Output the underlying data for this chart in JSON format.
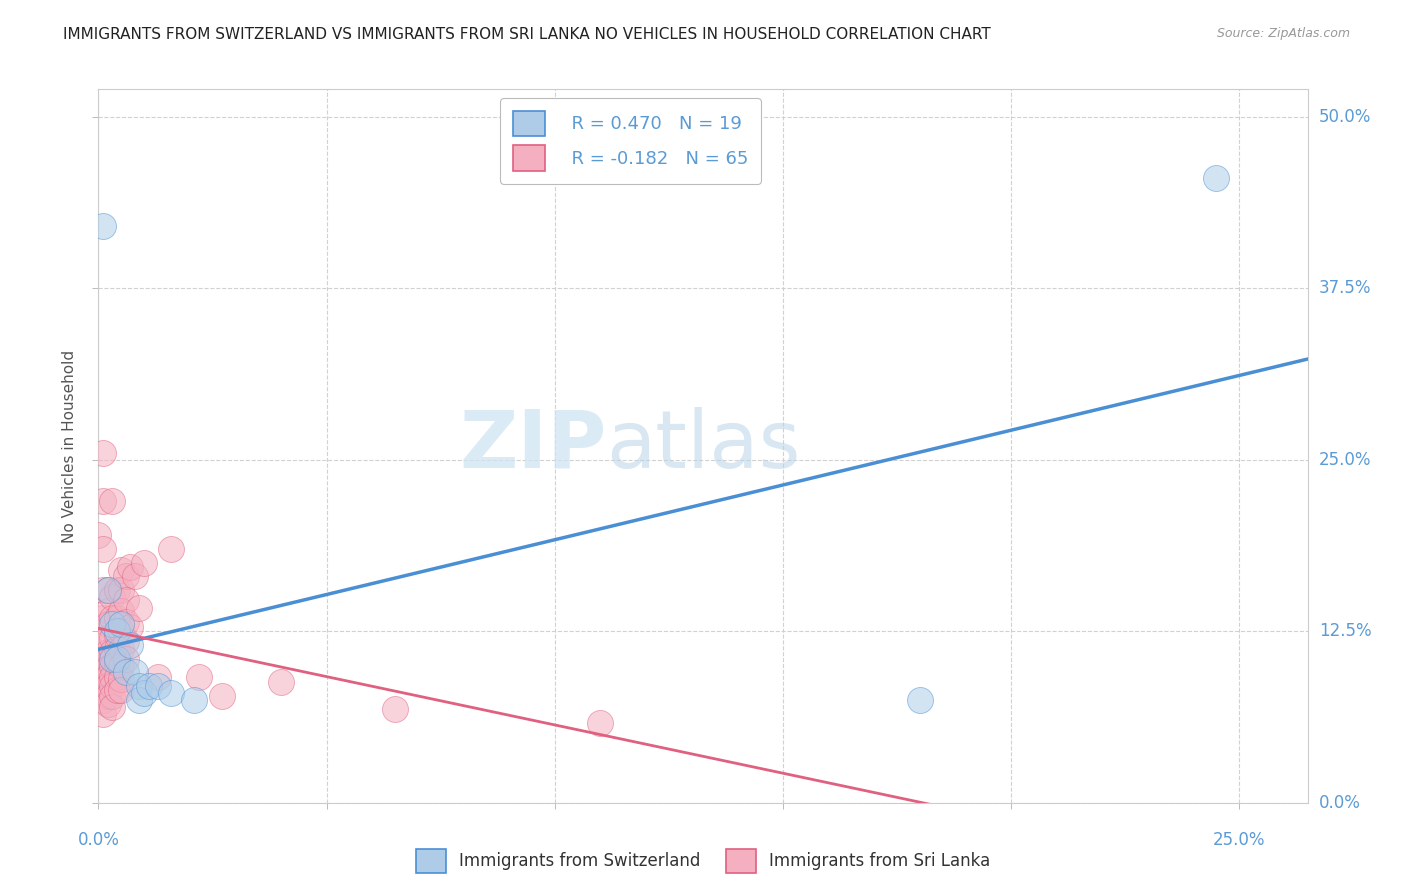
{
  "title": "IMMIGRANTS FROM SWITZERLAND VS IMMIGRANTS FROM SRI LANKA NO VEHICLES IN HOUSEHOLD CORRELATION CHART",
  "source": "Source: ZipAtlas.com",
  "ylabel": "No Vehicles in Household",
  "legend_r1": "R = 0.470",
  "legend_n1": "N = 19",
  "legend_r2": "R = -0.182",
  "legend_n2": "N = 65",
  "watermark_zip": "ZIP",
  "watermark_atlas": "atlas",
  "swiss_color": "#aecce8",
  "srilanka_color": "#f4afc0",
  "swiss_line_color": "#4a8fd4",
  "srilanka_line_color": "#e06080",
  "swiss_scatter": [
    [
      0.001,
      0.42
    ],
    [
      0.002,
      0.155
    ],
    [
      0.003,
      0.13
    ],
    [
      0.003,
      0.105
    ],
    [
      0.004,
      0.125
    ],
    [
      0.004,
      0.105
    ],
    [
      0.005,
      0.13
    ],
    [
      0.006,
      0.095
    ],
    [
      0.007,
      0.115
    ],
    [
      0.008,
      0.095
    ],
    [
      0.009,
      0.085
    ],
    [
      0.009,
      0.075
    ],
    [
      0.01,
      0.08
    ],
    [
      0.011,
      0.085
    ],
    [
      0.013,
      0.085
    ],
    [
      0.016,
      0.08
    ],
    [
      0.021,
      0.075
    ],
    [
      0.18,
      0.075
    ],
    [
      0.245,
      0.455
    ]
  ],
  "srilanka_scatter": [
    [
      0.0,
      0.195
    ],
    [
      0.001,
      0.255
    ],
    [
      0.001,
      0.22
    ],
    [
      0.001,
      0.185
    ],
    [
      0.001,
      0.155
    ],
    [
      0.001,
      0.135
    ],
    [
      0.001,
      0.115
    ],
    [
      0.001,
      0.105
    ],
    [
      0.001,
      0.095
    ],
    [
      0.001,
      0.085
    ],
    [
      0.001,
      0.075
    ],
    [
      0.001,
      0.065
    ],
    [
      0.002,
      0.155
    ],
    [
      0.002,
      0.14
    ],
    [
      0.002,
      0.13
    ],
    [
      0.002,
      0.12
    ],
    [
      0.002,
      0.11
    ],
    [
      0.002,
      0.105
    ],
    [
      0.002,
      0.098
    ],
    [
      0.002,
      0.092
    ],
    [
      0.002,
      0.085
    ],
    [
      0.002,
      0.078
    ],
    [
      0.002,
      0.072
    ],
    [
      0.003,
      0.22
    ],
    [
      0.003,
      0.15
    ],
    [
      0.003,
      0.135
    ],
    [
      0.003,
      0.12
    ],
    [
      0.003,
      0.11
    ],
    [
      0.003,
      0.1
    ],
    [
      0.003,
      0.092
    ],
    [
      0.003,
      0.085
    ],
    [
      0.003,
      0.078
    ],
    [
      0.003,
      0.07
    ],
    [
      0.004,
      0.155
    ],
    [
      0.004,
      0.135
    ],
    [
      0.004,
      0.122
    ],
    [
      0.004,
      0.112
    ],
    [
      0.004,
      0.102
    ],
    [
      0.004,
      0.092
    ],
    [
      0.004,
      0.082
    ],
    [
      0.005,
      0.17
    ],
    [
      0.005,
      0.155
    ],
    [
      0.005,
      0.14
    ],
    [
      0.005,
      0.125
    ],
    [
      0.005,
      0.112
    ],
    [
      0.005,
      0.1
    ],
    [
      0.005,
      0.09
    ],
    [
      0.005,
      0.082
    ],
    [
      0.006,
      0.165
    ],
    [
      0.006,
      0.148
    ],
    [
      0.006,
      0.132
    ],
    [
      0.006,
      0.118
    ],
    [
      0.006,
      0.105
    ],
    [
      0.007,
      0.172
    ],
    [
      0.007,
      0.128
    ],
    [
      0.008,
      0.165
    ],
    [
      0.009,
      0.142
    ],
    [
      0.01,
      0.175
    ],
    [
      0.013,
      0.092
    ],
    [
      0.016,
      0.185
    ],
    [
      0.022,
      0.092
    ],
    [
      0.027,
      0.078
    ],
    [
      0.04,
      0.088
    ],
    [
      0.065,
      0.068
    ],
    [
      0.11,
      0.058
    ]
  ],
  "xlim": [
    0.0,
    0.265
  ],
  "ylim": [
    0.0,
    0.52
  ],
  "x_ticks": [
    0.0,
    0.05,
    0.1,
    0.15,
    0.2,
    0.25
  ],
  "y_ticks": [
    0.0,
    0.125,
    0.25,
    0.375,
    0.5
  ],
  "y_tick_labels": [
    "0.0%",
    "12.5%",
    "25.0%",
    "37.5%",
    "50.0%"
  ],
  "background_color": "#ffffff",
  "grid_color": "#cccccc",
  "title_fontsize": 11,
  "source_fontsize": 9,
  "axis_label_color": "#5b9bd5"
}
